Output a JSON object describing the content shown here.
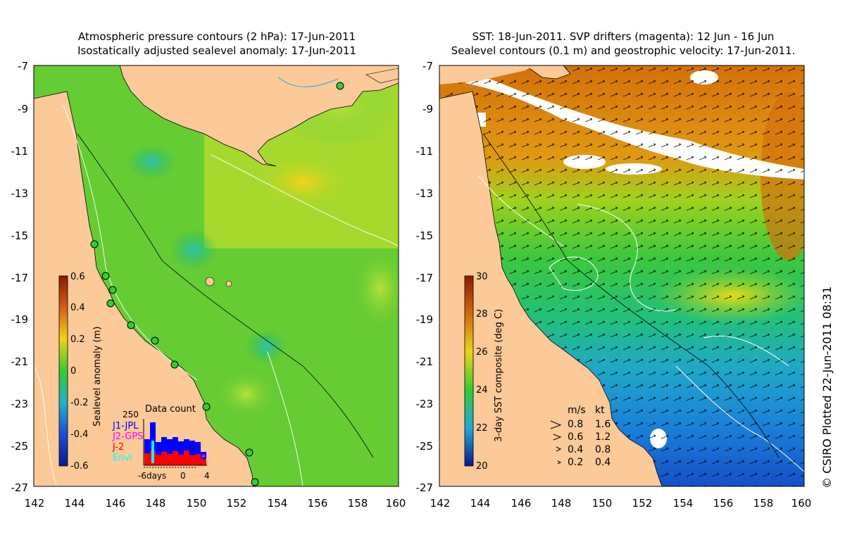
{
  "left_panel": {
    "title_line1": "Atmospheric pressure contours (2 hPa): 17-Jun-2011",
    "title_line2": "Isostatically adjusted sealevel anomaly: 17-Jun-2011",
    "colorbar_label": "Sealevel anomaly (m)",
    "colorbar_ticks": [
      "0.6",
      "0.4",
      "0.2",
      "0",
      "-0.2",
      "-0.4",
      "-0.6"
    ],
    "data_count": {
      "title": "Data count",
      "ymax_label": "250",
      "legend": [
        {
          "label": "J1-JPL",
          "color": "#0000ff"
        },
        {
          "label": "J2-GPS",
          "color": "#ff00ff"
        },
        {
          "label": "J-2",
          "color": "#ff0000"
        },
        {
          "label": "Envi",
          "color": "#00ffff"
        }
      ],
      "x_ticks": [
        "-6days",
        "0",
        "4"
      ]
    }
  },
  "right_panel": {
    "title_line1": "SST: 18-Jun-2011. SVP drifters (magenta): 12 Jun - 16 Jun",
    "title_line2": "Sealevel contours (0.1 m) and geostrophic velocity: 17-Jun-2011.",
    "colorbar_label": "3-day SST composite (deg C)",
    "colorbar_ticks": [
      "30",
      "28",
      "26",
      "24",
      "22",
      "20"
    ],
    "velocity_legend": {
      "header_ms": "m/s",
      "header_kt": "kt",
      "rows": [
        {
          "ms": "0.8",
          "kt": "1.6"
        },
        {
          "ms": "0.6",
          "kt": "1.2"
        },
        {
          "ms": "0.4",
          "kt": "0.8"
        },
        {
          "ms": "0.2",
          "kt": "0.4"
        }
      ]
    }
  },
  "axes": {
    "lat_ticks": [
      "-7",
      "-9",
      "-11",
      "-13",
      "-15",
      "-17",
      "-19",
      "-21",
      "-23",
      "-25",
      "-27"
    ],
    "lon_ticks": [
      "142",
      "144",
      "146",
      "148",
      "150",
      "152",
      "154",
      "156",
      "158",
      "160"
    ]
  },
  "credit": "© CSIRO Plotted 22-Jun-2011 08:31",
  "colors": {
    "land": "#fcc998",
    "sla_zero": "#33cc33",
    "sst_warm": "#d46a00",
    "sst_cool": "#1a7fd8"
  }
}
